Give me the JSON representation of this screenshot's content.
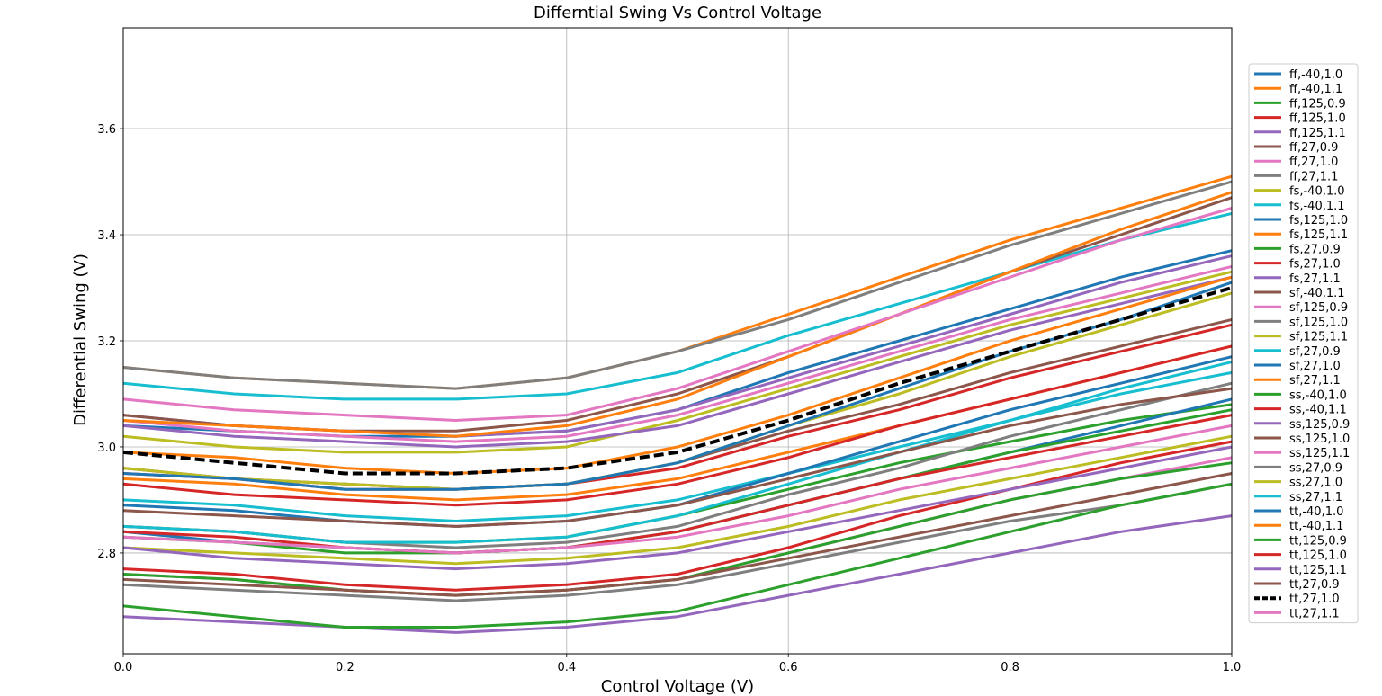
{
  "chart_data": {
    "type": "line",
    "title": "Differntial Swing Vs Control Voltage",
    "xlabel": "Control Voltage (V)",
    "ylabel": "Differential Swing (V)",
    "xlim": [
      0.0,
      1.0
    ],
    "ylim": [
      2.61,
      3.79
    ],
    "xticks": [
      "0.0",
      "0.2",
      "0.4",
      "0.6",
      "0.8",
      "1.0"
    ],
    "yticks": [
      "2.8",
      "3.0",
      "3.2",
      "3.4",
      "3.6"
    ],
    "grid": true,
    "legend_position": "right",
    "x": [
      0.0,
      0.1,
      0.2,
      0.3,
      0.4,
      0.5,
      0.6,
      0.7,
      0.8,
      0.9,
      1.0
    ],
    "series": [
      {
        "name": "ff,-40,1.0",
        "color": "#1f77b4",
        "style": "solid",
        "values": [
          3.04,
          3.03,
          3.02,
          3.02,
          3.03,
          3.07,
          3.14,
          3.2,
          3.26,
          3.32,
          3.37
        ]
      },
      {
        "name": "ff,-40,1.1",
        "color": "#ff7f0e",
        "style": "solid",
        "values": [
          3.15,
          3.13,
          3.12,
          3.11,
          3.13,
          3.18,
          3.25,
          3.32,
          3.39,
          3.45,
          3.51
        ]
      },
      {
        "name": "ff,125,0.9",
        "color": "#2ca02c",
        "style": "solid",
        "values": [
          2.85,
          2.84,
          2.82,
          2.82,
          2.83,
          2.87,
          2.92,
          2.97,
          3.01,
          3.05,
          3.08
        ]
      },
      {
        "name": "ff,125,1.0",
        "color": "#d62728",
        "style": "solid",
        "values": [
          2.95,
          2.94,
          2.92,
          2.92,
          2.93,
          2.96,
          3.02,
          3.07,
          3.13,
          3.18,
          3.23
        ]
      },
      {
        "name": "ff,125,1.1",
        "color": "#9467bd",
        "style": "solid",
        "values": [
          3.06,
          3.04,
          3.03,
          3.02,
          3.03,
          3.07,
          3.13,
          3.19,
          3.25,
          3.31,
          3.36
        ]
      },
      {
        "name": "ff,27,0.9",
        "color": "#8c564b",
        "style": "solid",
        "values": [
          2.96,
          2.94,
          2.93,
          2.92,
          2.93,
          2.97,
          3.03,
          3.08,
          3.14,
          3.19,
          3.24
        ]
      },
      {
        "name": "ff,27,1.0",
        "color": "#e377c2",
        "style": "solid",
        "values": [
          3.05,
          3.03,
          3.02,
          3.01,
          3.02,
          3.06,
          3.12,
          3.18,
          3.24,
          3.29,
          3.34
        ]
      },
      {
        "name": "ff,27,1.1",
        "color": "#7f7f7f",
        "style": "solid",
        "values": [
          3.15,
          3.13,
          3.12,
          3.11,
          3.13,
          3.18,
          3.24,
          3.31,
          3.38,
          3.44,
          3.5
        ]
      },
      {
        "name": "fs,-40,1.0",
        "color": "#bcbd22",
        "style": "solid",
        "values": [
          3.02,
          3.0,
          2.99,
          2.99,
          3.0,
          3.05,
          3.11,
          3.17,
          3.23,
          3.28,
          3.33
        ]
      },
      {
        "name": "fs,-40,1.1",
        "color": "#17becf",
        "style": "solid",
        "values": [
          3.12,
          3.1,
          3.09,
          3.09,
          3.1,
          3.14,
          3.21,
          3.27,
          3.33,
          3.39,
          3.44
        ]
      },
      {
        "name": "fs,125,1.0",
        "color": "#1f77b4",
        "style": "solid",
        "values": [
          2.84,
          2.82,
          2.81,
          2.8,
          2.81,
          2.84,
          2.89,
          2.94,
          2.99,
          3.04,
          3.09
        ]
      },
      {
        "name": "fs,125,1.1",
        "color": "#ff7f0e",
        "style": "solid",
        "values": [
          2.94,
          2.93,
          2.91,
          2.9,
          2.91,
          2.94,
          2.99,
          3.04,
          3.09,
          3.14,
          3.19
        ]
      },
      {
        "name": "fs,27,0.9",
        "color": "#2ca02c",
        "style": "solid",
        "values": [
          2.83,
          2.82,
          2.8,
          2.8,
          2.81,
          2.84,
          2.89,
          2.94,
          2.99,
          3.03,
          3.07
        ]
      },
      {
        "name": "fs,27,1.0",
        "color": "#d62728",
        "style": "solid",
        "values": [
          2.93,
          2.91,
          2.9,
          2.89,
          2.9,
          2.93,
          2.98,
          3.04,
          3.09,
          3.14,
          3.19
        ]
      },
      {
        "name": "fs,27,1.1",
        "color": "#9467bd",
        "style": "solid",
        "values": [
          3.04,
          3.02,
          3.01,
          3.0,
          3.01,
          3.04,
          3.1,
          3.16,
          3.22,
          3.27,
          3.32
        ]
      },
      {
        "name": "sf,-40,1.1",
        "color": "#8c564b",
        "style": "solid",
        "values": [
          3.06,
          3.04,
          3.03,
          3.03,
          3.05,
          3.1,
          3.17,
          3.25,
          3.33,
          3.4,
          3.47
        ]
      },
      {
        "name": "sf,125,0.9",
        "color": "#e377c2",
        "style": "solid",
        "values": [
          2.76,
          2.75,
          2.73,
          2.72,
          2.73,
          2.75,
          2.8,
          2.85,
          2.9,
          2.94,
          2.98
        ]
      },
      {
        "name": "sf,125,1.0",
        "color": "#7f7f7f",
        "style": "solid",
        "values": [
          2.85,
          2.84,
          2.82,
          2.81,
          2.82,
          2.85,
          2.91,
          2.96,
          3.02,
          3.07,
          3.12
        ]
      },
      {
        "name": "sf,125,1.1",
        "color": "#bcbd22",
        "style": "solid",
        "values": [
          2.96,
          2.94,
          2.93,
          2.92,
          2.93,
          2.97,
          3.04,
          3.1,
          3.17,
          3.23,
          3.29
        ]
      },
      {
        "name": "sf,27,0.9",
        "color": "#17becf",
        "style": "solid",
        "values": [
          2.85,
          2.84,
          2.82,
          2.82,
          2.83,
          2.87,
          2.93,
          2.99,
          3.05,
          3.11,
          3.16
        ]
      },
      {
        "name": "sf,27,1.0",
        "color": "#1f77b4",
        "style": "solid",
        "values": [
          2.95,
          2.94,
          2.92,
          2.92,
          2.93,
          2.97,
          3.04,
          3.11,
          3.18,
          3.24,
          3.31
        ]
      },
      {
        "name": "sf,27,1.1",
        "color": "#ff7f0e",
        "style": "solid",
        "values": [
          3.05,
          3.04,
          3.03,
          3.02,
          3.04,
          3.09,
          3.17,
          3.25,
          3.33,
          3.41,
          3.48
        ]
      },
      {
        "name": "ss,-40,1.0",
        "color": "#2ca02c",
        "style": "solid",
        "values": [
          2.76,
          2.75,
          2.73,
          2.72,
          2.73,
          2.75,
          2.8,
          2.85,
          2.9,
          2.94,
          2.97
        ]
      },
      {
        "name": "ss,-40,1.1",
        "color": "#d62728",
        "style": "solid",
        "values": [
          2.84,
          2.83,
          2.81,
          2.8,
          2.81,
          2.84,
          2.89,
          2.94,
          2.98,
          3.02,
          3.06
        ]
      },
      {
        "name": "ss,125,0.9",
        "color": "#9467bd",
        "style": "solid",
        "values": [
          2.68,
          2.67,
          2.66,
          2.65,
          2.66,
          2.68,
          2.72,
          2.76,
          2.8,
          2.84,
          2.87
        ]
      },
      {
        "name": "ss,125,1.0",
        "color": "#8c564b",
        "style": "solid",
        "values": [
          2.75,
          2.74,
          2.73,
          2.72,
          2.73,
          2.75,
          2.79,
          2.83,
          2.87,
          2.91,
          2.95
        ]
      },
      {
        "name": "ss,125,1.1",
        "color": "#e377c2",
        "style": "solid",
        "values": [
          2.83,
          2.82,
          2.81,
          2.8,
          2.81,
          2.83,
          2.87,
          2.92,
          2.96,
          3.0,
          3.04
        ]
      },
      {
        "name": "ss,27,0.9",
        "color": "#7f7f7f",
        "style": "solid",
        "values": [
          2.74,
          2.73,
          2.72,
          2.71,
          2.72,
          2.74,
          2.78,
          2.82,
          2.86,
          2.89,
          2.93
        ]
      },
      {
        "name": "ss,27,1.0",
        "color": "#bcbd22",
        "style": "solid",
        "values": [
          2.81,
          2.8,
          2.79,
          2.78,
          2.79,
          2.81,
          2.85,
          2.9,
          2.94,
          2.98,
          3.02
        ]
      },
      {
        "name": "ss,27,1.1",
        "color": "#17becf",
        "style": "solid",
        "values": [
          2.9,
          2.89,
          2.87,
          2.86,
          2.87,
          2.9,
          2.95,
          3.0,
          3.05,
          3.1,
          3.14
        ]
      },
      {
        "name": "tt,-40,1.0",
        "color": "#1f77b4",
        "style": "solid",
        "values": [
          2.89,
          2.88,
          2.86,
          2.85,
          2.86,
          2.89,
          2.95,
          3.01,
          3.07,
          3.12,
          3.17
        ]
      },
      {
        "name": "tt,-40,1.1",
        "color": "#ff7f0e",
        "style": "solid",
        "values": [
          2.99,
          2.98,
          2.96,
          2.95,
          2.96,
          3.0,
          3.06,
          3.13,
          3.2,
          3.26,
          3.32
        ]
      },
      {
        "name": "tt,125,0.9",
        "color": "#2ca02c",
        "style": "solid",
        "values": [
          2.7,
          2.68,
          2.66,
          2.66,
          2.67,
          2.69,
          2.74,
          2.79,
          2.84,
          2.89,
          2.93
        ]
      },
      {
        "name": "tt,125,1.0",
        "color": "#d62728",
        "style": "solid",
        "values": [
          2.77,
          2.76,
          2.74,
          2.73,
          2.74,
          2.76,
          2.81,
          2.87,
          2.92,
          2.97,
          3.01
        ]
      },
      {
        "name": "tt,125,1.1",
        "color": "#9467bd",
        "style": "solid",
        "values": [
          2.81,
          2.79,
          2.78,
          2.77,
          2.78,
          2.8,
          2.84,
          2.88,
          2.92,
          2.96,
          3.0
        ]
      },
      {
        "name": "tt,27,0.9",
        "color": "#8c564b",
        "style": "solid",
        "values": [
          2.88,
          2.87,
          2.86,
          2.85,
          2.86,
          2.89,
          2.94,
          2.99,
          3.04,
          3.08,
          3.11
        ]
      },
      {
        "name": "tt,27,1.0",
        "color": "#000000",
        "style": "dashed",
        "values": [
          2.99,
          2.97,
          2.95,
          2.95,
          2.96,
          2.99,
          3.05,
          3.12,
          3.18,
          3.24,
          3.3
        ]
      },
      {
        "name": "tt,27,1.1",
        "color": "#e377c2",
        "style": "solid",
        "values": [
          3.09,
          3.07,
          3.06,
          3.05,
          3.06,
          3.11,
          3.18,
          3.25,
          3.32,
          3.39,
          3.45
        ]
      }
    ]
  }
}
